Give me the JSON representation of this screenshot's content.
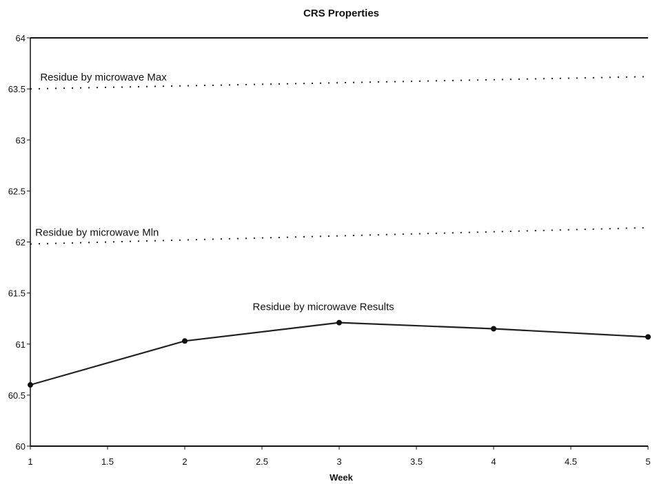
{
  "chart_data": {
    "type": "line",
    "title": "CRS Properties",
    "xlabel": "Week",
    "ylabel": "",
    "xlim": [
      1,
      5
    ],
    "ylim": [
      60,
      64
    ],
    "x_ticks": [
      "1",
      "1.5",
      "2",
      "2.5",
      "3",
      "3.5",
      "4",
      "4.5",
      "5"
    ],
    "y_ticks": [
      "60",
      "60.5",
      "61",
      "61.5",
      "62",
      "62.5",
      "63",
      "63.5",
      "64"
    ],
    "grid": false,
    "series": [
      {
        "name": "Residue by microwave Max",
        "style": "dotted",
        "x": [
          1,
          5
        ],
        "y": [
          63.5,
          63.62
        ]
      },
      {
        "name": "Residue by microwave Mln",
        "style": "dotted",
        "x": [
          1,
          5
        ],
        "y": [
          61.98,
          62.14
        ]
      },
      {
        "name": "Residue by microwave Results",
        "style": "solid-markers",
        "x": [
          1,
          2,
          3,
          4,
          5
        ],
        "y": [
          60.6,
          61.03,
          61.21,
          61.15,
          61.07
        ]
      }
    ]
  }
}
